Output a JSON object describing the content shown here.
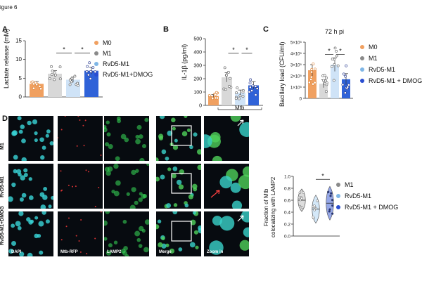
{
  "figure_label": "igure 6",
  "panels": {
    "A": {
      "letter": "A",
      "ylabel": "Lactate release (mM)"
    },
    "B": {
      "letter": "B",
      "ylabel": "IL-1β (pg/ml)",
      "group_label": "Mtb"
    },
    "C": {
      "letter": "C",
      "title": "72 h pi",
      "ylabel": "Bacillary load (CFU/ml)"
    },
    "D": {
      "letter": "D"
    },
    "E": {
      "ylabel_line1": "Fraction of Mtb",
      "ylabel_line2": "colocalizing with LAMP2"
    }
  },
  "legend_A": [
    {
      "label": "M0",
      "color": "#f0a060"
    },
    {
      "label": "M1",
      "color": "#8a8a8a"
    },
    {
      "label": "RvD5-M1",
      "color": "#7fb6e6"
    },
    {
      "label": "RvD5-M1+DMOG",
      "color": "#2b4fd1"
    }
  ],
  "legend_C": [
    {
      "label": "M0",
      "color": "#f0a060"
    },
    {
      "label": "M1",
      "color": "#8a8a8a"
    },
    {
      "label": "RvD5-M1",
      "color": "#7fb6e6"
    },
    {
      "label": "RvD5-M1 + DMOG",
      "color": "#2b4fd1"
    }
  ],
  "legend_E": [
    {
      "label": "M1",
      "color": "#8a8a8a"
    },
    {
      "label": "RvD5-M1",
      "color": "#7fb6e6"
    },
    {
      "label": "RvD5-M1 + DMOG",
      "color": "#2b4fd1"
    }
  ],
  "microscopy": {
    "rows": [
      "M1",
      "RvD5-M1",
      "RvD5-M1+DMOG"
    ],
    "cols": [
      "DAPI",
      "Mtb-RFP",
      "LAMP2",
      "Merge",
      "Zoom in"
    ]
  },
  "chart_data": [
    {
      "type": "bar",
      "panel": "A",
      "categories": [
        "M0",
        "M1",
        "RvD5-M1",
        "RvD5-M1+DMOG"
      ],
      "values": [
        3.5,
        6.2,
        4.6,
        7.0
      ],
      "errors": [
        0.6,
        0.8,
        0.7,
        0.9
      ],
      "colors": [
        "#f0a060",
        "#d8d8d8",
        "#cfe3f7",
        "#2f62d8"
      ],
      "ylabel": "Lactate release (mM)",
      "ylim": [
        0,
        15
      ],
      "yticks": [
        "0",
        "5",
        "10",
        "15"
      ],
      "significance": [
        [
          "1",
          "2",
          "*"
        ],
        [
          "2",
          "3",
          "*"
        ]
      ]
    },
    {
      "type": "bar",
      "panel": "B",
      "categories": [
        "M0",
        "M1",
        "RvD5-M1",
        "RvD5-M1+DMOG"
      ],
      "values": [
        70,
        210,
        95,
        150
      ],
      "errors": [
        12,
        35,
        20,
        28
      ],
      "colors": [
        "#f0a060",
        "#d8d8d8",
        "#cfe3f7",
        "#2f62d8"
      ],
      "ylabel": "IL-1β (pg/ml)",
      "ylim": [
        0,
        500
      ],
      "yticks": [
        "0",
        "100",
        "200",
        "300",
        "400",
        "500"
      ],
      "significance": [
        [
          "1",
          "2",
          "*"
        ],
        [
          "2",
          "3",
          "*"
        ]
      ]
    },
    {
      "type": "bar",
      "panel": "C",
      "title": "72 h pi",
      "categories": [
        "M0",
        "M1",
        "RvD5-M1",
        "RvD5-M1 + DMOG"
      ],
      "values": [
        250000,
        130000,
        300000,
        170000
      ],
      "errors": [
        50000,
        35000,
        60000,
        50000
      ],
      "colors": [
        "#f0a060",
        "#d8d8d8",
        "#cfe3f7",
        "#2f62d8"
      ],
      "ylabel": "Bacillary load (CFU/ml)",
      "ylim": [
        0,
        500000
      ],
      "yticks": [
        "0",
        "1×10⁵",
        "2×10⁵",
        "3×10⁵",
        "4×10⁵",
        "5×10⁵"
      ],
      "significance": [
        [
          "1",
          "2",
          "*"
        ],
        [
          "2",
          "3",
          "*"
        ]
      ]
    },
    {
      "type": "violin",
      "panel": "E",
      "categories": [
        "M1",
        "RvD5-M1",
        "RvD5-M1 + DMOG"
      ],
      "medians": [
        0.6,
        0.45,
        0.55
      ],
      "colors": [
        "#bbbbbb",
        "#a9d2f2",
        "#2b4fd1"
      ],
      "ylabel": "Fraction of Mtb colocalizing with LAMP2",
      "ylim": [
        0,
        1.0
      ],
      "yticks": [
        "0.0",
        "0.2",
        "0.4",
        "0.6",
        "0.8",
        "1.0"
      ],
      "significance": [
        [
          "1",
          "2",
          "*"
        ]
      ]
    }
  ]
}
